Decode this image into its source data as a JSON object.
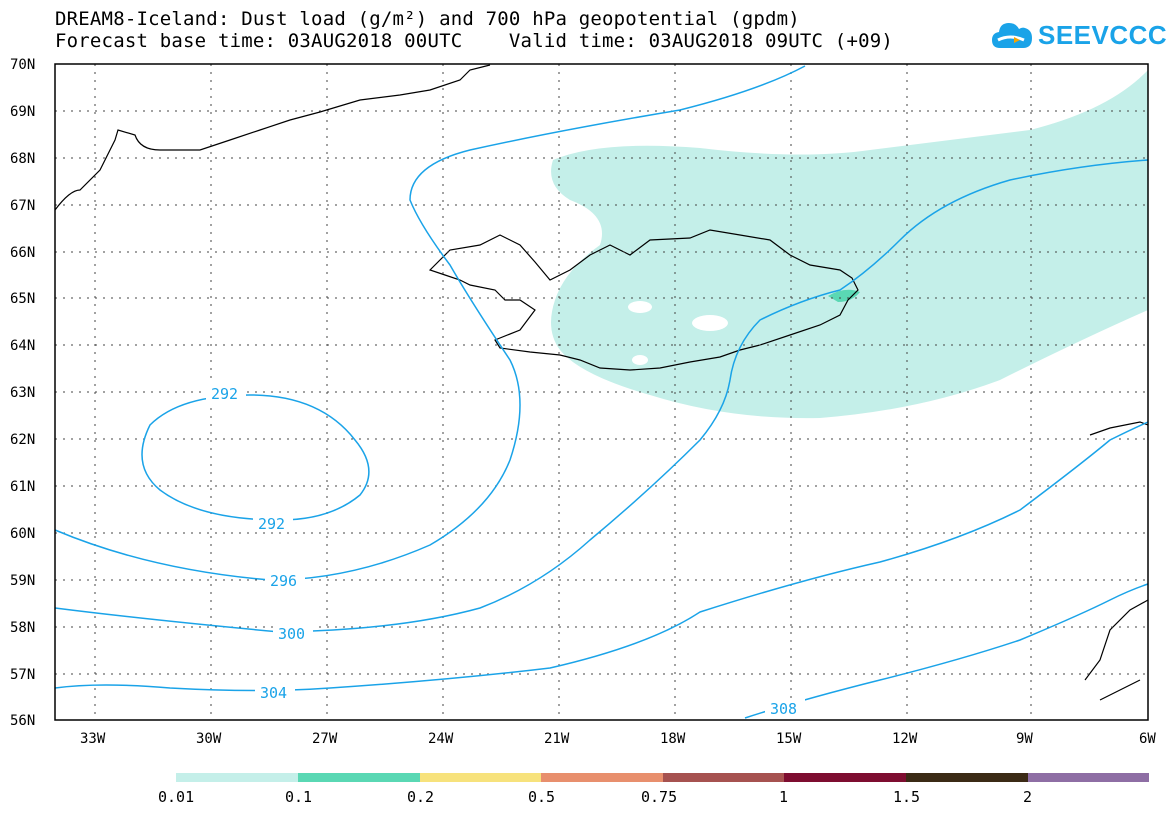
{
  "header": {
    "title_line1": "DREAM8-Iceland: Dust load (g/m²) and 700 hPa geopotential (gpdm)",
    "title_line2": "Forecast base time: 03AUG2018 00UTC    Valid time: 03AUG2018 09UTC (+09)"
  },
  "logo": {
    "text": "SEEVCCC",
    "icon": "cloud-icon",
    "color": "#1aa3e8"
  },
  "map": {
    "lat_labels": [
      "70N",
      "69N",
      "68N",
      "67N",
      "66N",
      "65N",
      "64N",
      "63N",
      "62N",
      "61N",
      "60N",
      "59N",
      "58N",
      "57N",
      "56N"
    ],
    "lon_labels": [
      "33W",
      "30W",
      "27W",
      "24W",
      "21W",
      "18W",
      "15W",
      "12W",
      "9W",
      "6W"
    ],
    "contour_color": "#1aa3e8",
    "dust_color": "#c4efe9",
    "dust_high_color": "#5ad8b4",
    "contour_labels": [
      {
        "text": "292",
        "field": "700 hPa geopotential"
      },
      {
        "text": "292",
        "field": "700 hPa geopotential"
      },
      {
        "text": "296",
        "field": "700 hPa geopotential"
      },
      {
        "text": "300",
        "field": "700 hPa geopotential"
      },
      {
        "text": "304",
        "field": "700 hPa geopotential"
      },
      {
        "text": "308",
        "field": "700 hPa geopotential"
      }
    ]
  },
  "colorbar": {
    "labels": [
      "0.01",
      "0.1",
      "0.2",
      "0.5",
      "0.75",
      "1",
      "1.5",
      "2"
    ],
    "colors": [
      "#c4efe9",
      "#5ad8b4",
      "#f7e27c",
      "#e88f6d",
      "#a65250",
      "#7e0d30",
      "#3b2a15",
      "#8e6ea4"
    ]
  }
}
